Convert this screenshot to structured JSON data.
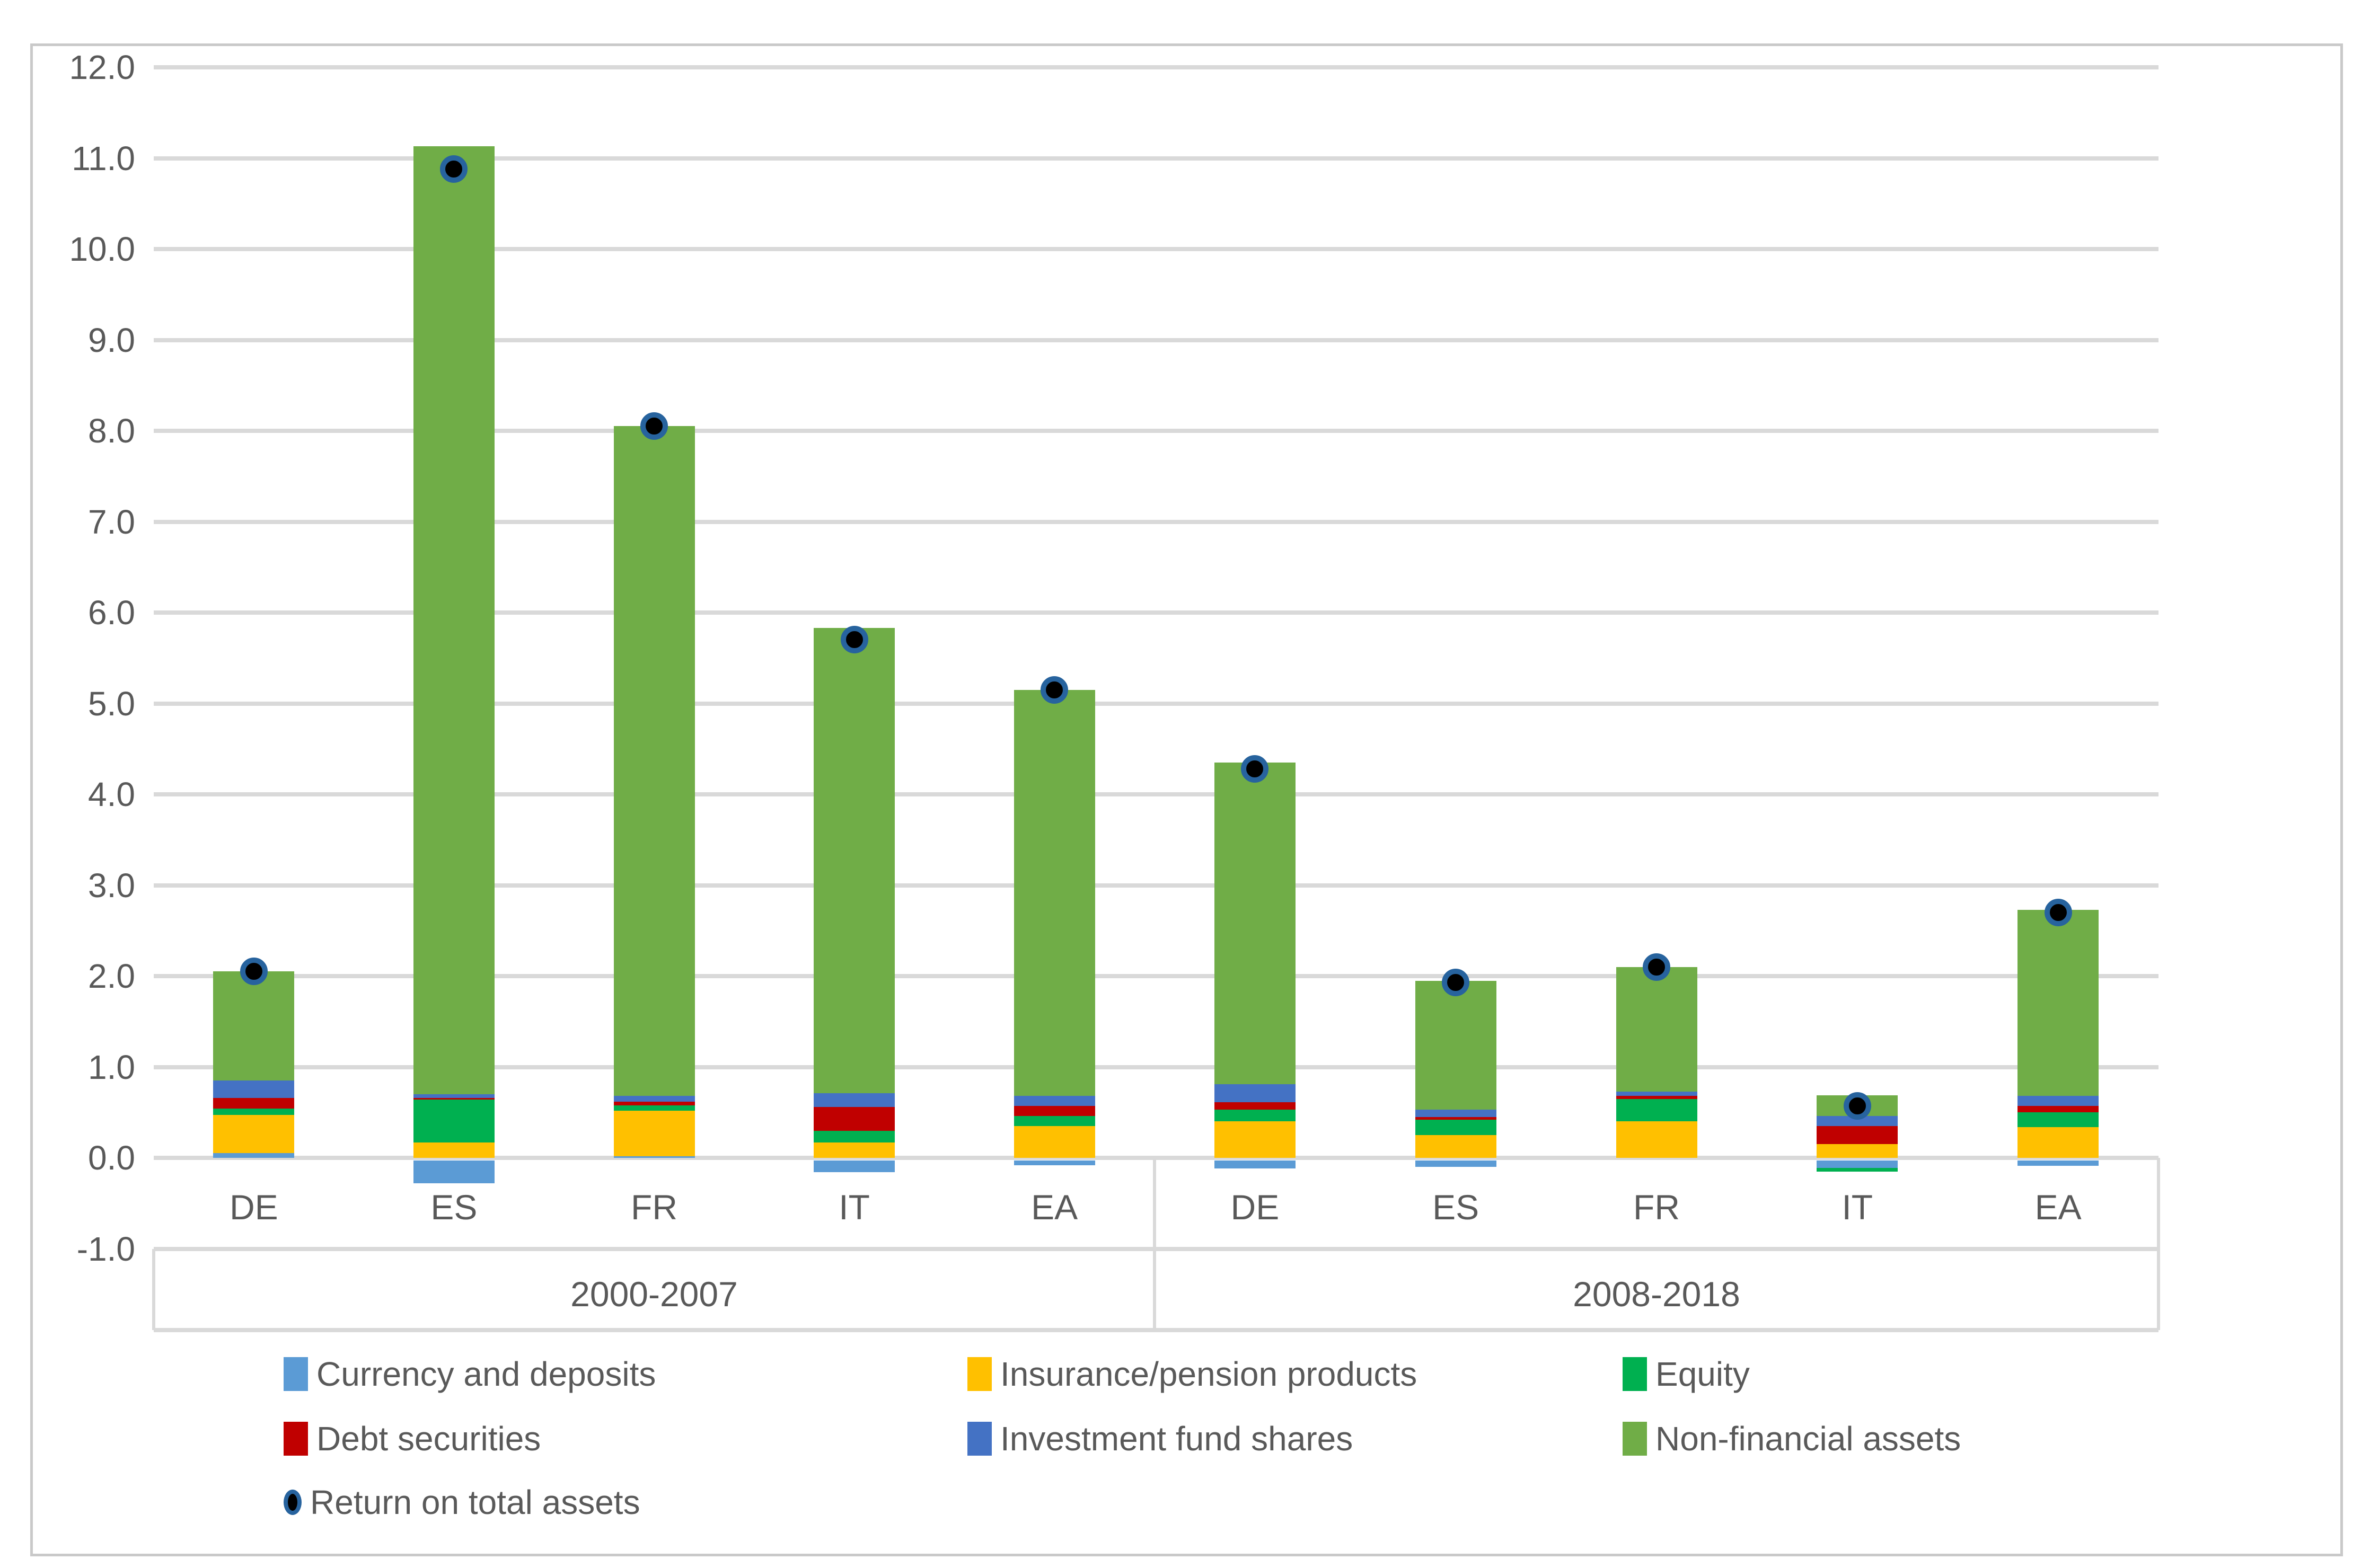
{
  "chart_data": {
    "type": "bar",
    "stacked": true,
    "title": "",
    "xlabel": "",
    "ylabel": "",
    "grid": true,
    "legend_position": "bottom",
    "y_axis": {
      "min": -1.0,
      "max": 12.0,
      "tick_step": 1.0,
      "tick_labels": [
        "12.0",
        "11.0",
        "10.0",
        "9.0",
        "8.0",
        "7.0",
        "6.0",
        "5.0",
        "4.0",
        "3.0",
        "2.0",
        "1.0",
        "0.0",
        "-1.0"
      ]
    },
    "groups": [
      {
        "label": "2000-2007",
        "categories": [
          "DE",
          "ES",
          "FR",
          "IT",
          "EA"
        ]
      },
      {
        "label": "2008-2018",
        "categories": [
          "DE",
          "ES",
          "FR",
          "IT",
          "EA"
        ]
      }
    ],
    "series": [
      {
        "name": "Currency and deposits",
        "color": "#5B9BD5",
        "values": [
          0.05,
          -0.25,
          0.02,
          -0.13,
          -0.05,
          -0.09,
          -0.07,
          0.0,
          -0.08,
          -0.06
        ]
      },
      {
        "name": "Insurance/pension products",
        "color": "#FFC000",
        "values": [
          0.42,
          0.17,
          0.5,
          0.17,
          0.35,
          0.4,
          0.25,
          0.4,
          0.15,
          0.34
        ]
      },
      {
        "name": "Equity",
        "color": "#00B050",
        "values": [
          0.07,
          0.47,
          0.06,
          0.13,
          0.11,
          0.13,
          0.17,
          0.25,
          -0.04,
          0.16
        ]
      },
      {
        "name": "Debt securities",
        "color": "#C00000",
        "values": [
          0.12,
          0.02,
          0.04,
          0.26,
          0.11,
          0.08,
          0.03,
          0.03,
          0.2,
          0.07
        ]
      },
      {
        "name": "Investment fund shares",
        "color": "#4472C4",
        "values": [
          0.19,
          0.04,
          0.06,
          0.15,
          0.11,
          0.2,
          0.08,
          0.05,
          0.11,
          0.11
        ]
      },
      {
        "name": "Non-financial assets",
        "color": "#70AD47",
        "values": [
          1.2,
          10.43,
          7.37,
          5.12,
          4.47,
          3.54,
          1.42,
          1.37,
          0.23,
          2.05
        ]
      }
    ],
    "marker_series": {
      "name": "Return on total assets",
      "fill_color": "#000000",
      "ring_color": "#27639E",
      "values": [
        2.05,
        10.88,
        8.05,
        5.7,
        5.15,
        4.28,
        1.93,
        2.1,
        0.57,
        2.7
      ]
    },
    "bar_totals": [
      2.05,
      11.13,
      8.05,
      5.83,
      5.15,
      4.35,
      1.95,
      2.1,
      0.69,
      2.73
    ],
    "colors": {
      "gridline": "#D9D9D9",
      "axis_text": "#595959",
      "figure_border": "#C9C9C9",
      "background": "#FFFFFF"
    },
    "legend_rows": [
      [
        "Currency and deposits",
        "Insurance/pension products",
        "Equity"
      ],
      [
        "Debt securities",
        "Investment fund shares",
        "Non-financial assets"
      ],
      [
        "Return on total assets"
      ]
    ]
  }
}
